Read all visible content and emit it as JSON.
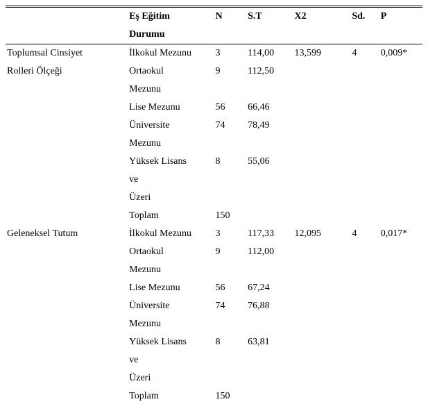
{
  "columns": {
    "c1": "",
    "c2_line1": "Eş Eğitim",
    "c2_line2": "Durumu",
    "c3": "N",
    "c4": "S.T",
    "c5": "X2",
    "c6": "Sd.",
    "c7": "P"
  },
  "labels": {
    "ilkokul": "İlkokul Mezunu",
    "ortaokul": "Ortaokul",
    "mezunu": "Mezunu",
    "lise": "Lise Mezunu",
    "universite": "Üniversite",
    "yuksek_lisans": "Yüksek Lisans",
    "ve": "ve",
    "uzeri": "Üzeri",
    "toplam": "Toplam"
  },
  "section1": {
    "name_l1": "Toplumsal Cinsiyet",
    "name_l2": "Rolleri Ölçeği",
    "ilkokul_n": "3",
    "ilkokul_st": "114,00",
    "ortaokul_n": "9",
    "ortaokul_st": "112,50",
    "lise_n": "56",
    "lise_st": "66,46",
    "uni_n": "74",
    "uni_st": "78,49",
    "yl_n": "8",
    "yl_st": "55,06",
    "toplam_n": "150",
    "x2": "13,599",
    "sd": "4",
    "p": "0,009*"
  },
  "section2": {
    "name": "Geleneksel Tutum",
    "ilkokul_n": "3",
    "ilkokul_st": "117,33",
    "ortaokul_n": "9",
    "ortaokul_st": "112,00",
    "lise_n": "56",
    "lise_st": "67,24",
    "uni_n": "74",
    "uni_st": "76,88",
    "yl_n": "8",
    "yl_st": "63,81",
    "toplam_n": "150",
    "x2": "12,095",
    "sd": "4",
    "p": "0,017*"
  }
}
